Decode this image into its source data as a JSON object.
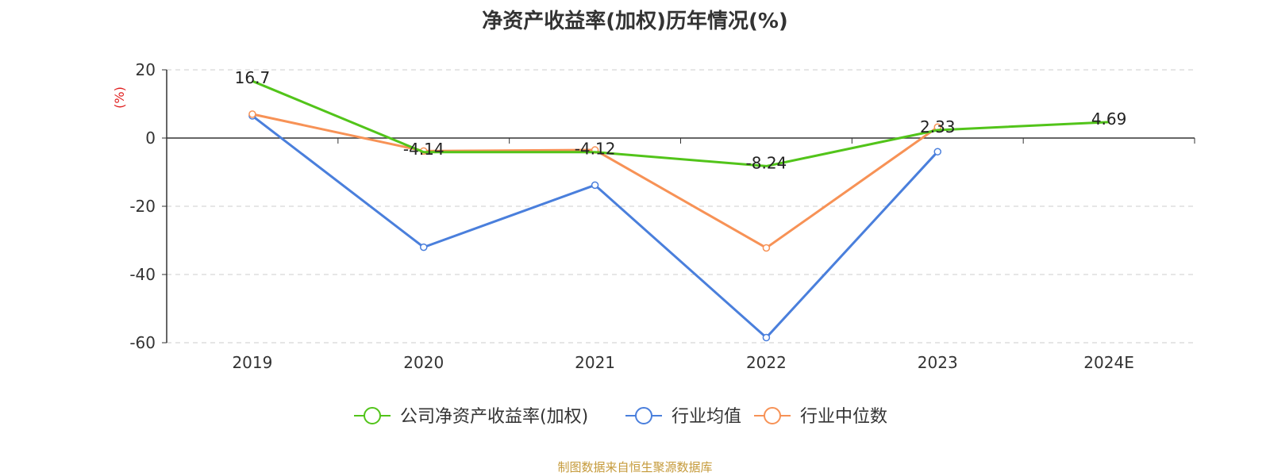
{
  "chart_data": {
    "type": "line",
    "title": "净资产收益率(加权)历年情况(%)",
    "ylabel": "(%)",
    "ylabel_color": "#e02020",
    "categories": [
      "2019",
      "2020",
      "2021",
      "2022",
      "2023",
      "2024E"
    ],
    "ylim": [
      -60,
      20
    ],
    "yticks": [
      20,
      0,
      -20,
      -40,
      -60
    ],
    "grid": true,
    "legend_position": "bottom-center",
    "series": [
      {
        "name": "公司净资产收益率(加权)",
        "color": "#52c41a",
        "values": [
          16.7,
          -4.14,
          -4.12,
          -8.24,
          2.33,
          4.69
        ],
        "labels": [
          "16.7",
          "-4.14",
          "-4.12",
          "-8.24",
          "2.33",
          "4.69"
        ],
        "show_markers": false
      },
      {
        "name": "行业均值",
        "color": "#4a7fdc",
        "values": [
          6.5,
          -32,
          -13.8,
          -58.5,
          -4,
          null
        ],
        "show_markers": true
      },
      {
        "name": "行业中位数",
        "color": "#f79256",
        "values": [
          7,
          -3.8,
          -3.5,
          -32.2,
          3.2,
          null
        ],
        "show_markers": true
      }
    ]
  },
  "source": {
    "text": "制图数据来自恒生聚源数据库",
    "color": "#c59a3a"
  }
}
